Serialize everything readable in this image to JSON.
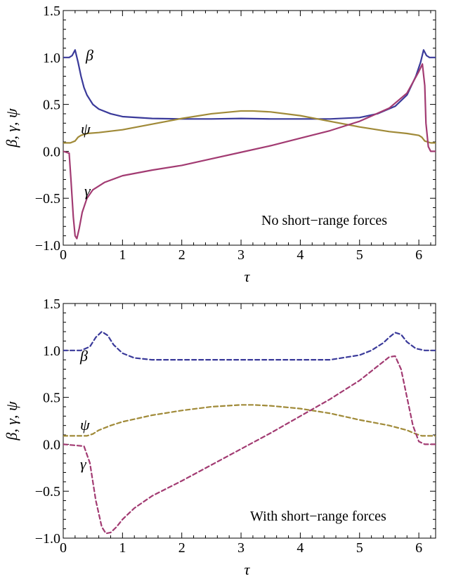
{
  "chart_data": [
    {
      "type": "line",
      "xlabel": "τ",
      "ylabel": "β, γ, ψ",
      "xlim": [
        0,
        6.2832
      ],
      "ylim": [
        -1.0,
        1.5
      ],
      "xticks": [
        "0",
        "1",
        "2",
        "3",
        "4",
        "5",
        "6"
      ],
      "yticks": [
        "−1.0",
        "−0.5",
        "0.0",
        "0.5",
        "1.0",
        "1.5"
      ],
      "annotation": "No short−range forces",
      "line_style": "solid",
      "series": [
        {
          "name": "β",
          "color": "#3a3a9a",
          "x": [
            0,
            0.1,
            0.15,
            0.2,
            0.25,
            0.3,
            0.35,
            0.4,
            0.5,
            0.6,
            0.8,
            1.0,
            1.5,
            2.0,
            2.5,
            3.0,
            3.5,
            4.0,
            4.5,
            5.0,
            5.3,
            5.6,
            5.8,
            5.95,
            6.03,
            6.08,
            6.13,
            6.18,
            6.2832
          ],
          "y": [
            1.0,
            1.0,
            1.02,
            1.08,
            0.95,
            0.8,
            0.68,
            0.6,
            0.5,
            0.45,
            0.4,
            0.37,
            0.35,
            0.345,
            0.345,
            0.35,
            0.345,
            0.345,
            0.345,
            0.36,
            0.4,
            0.48,
            0.6,
            0.8,
            0.95,
            1.08,
            1.02,
            1.0,
            1.0
          ]
        },
        {
          "name": "ψ",
          "color": "#a08a38",
          "x": [
            0,
            0.12,
            0.2,
            0.25,
            0.3,
            0.4,
            0.6,
            1.0,
            1.5,
            2.0,
            2.5,
            3.0,
            3.2,
            3.5,
            4.0,
            4.5,
            5.0,
            5.5,
            5.8,
            6.0,
            6.05,
            6.1,
            6.2,
            6.2832
          ],
          "y": [
            0.09,
            0.09,
            0.11,
            0.15,
            0.17,
            0.19,
            0.2,
            0.23,
            0.29,
            0.35,
            0.4,
            0.43,
            0.43,
            0.42,
            0.38,
            0.32,
            0.26,
            0.21,
            0.19,
            0.17,
            0.15,
            0.11,
            0.09,
            0.09
          ]
        },
        {
          "name": "γ",
          "color": "#a23b72",
          "x": [
            0,
            0.1,
            0.13,
            0.17,
            0.2,
            0.23,
            0.27,
            0.32,
            0.4,
            0.5,
            0.7,
            1.0,
            1.5,
            2.0,
            2.5,
            3.0,
            3.5,
            4.0,
            4.5,
            5.0,
            5.5,
            5.8,
            6.0,
            6.06,
            6.1,
            6.12,
            6.16,
            6.2,
            6.2832
          ],
          "y": [
            0.0,
            -0.02,
            -0.3,
            -0.7,
            -0.9,
            -0.93,
            -0.82,
            -0.65,
            -0.5,
            -0.41,
            -0.33,
            -0.26,
            -0.2,
            -0.15,
            -0.08,
            -0.01,
            0.06,
            0.14,
            0.22,
            0.32,
            0.46,
            0.62,
            0.85,
            0.93,
            0.7,
            0.3,
            0.05,
            0.0,
            0.0
          ]
        }
      ]
    },
    {
      "type": "line",
      "xlabel": "τ",
      "ylabel": "β, γ, ψ",
      "xlim": [
        0,
        6.2832
      ],
      "ylim": [
        -1.0,
        1.5
      ],
      "xticks": [
        "0",
        "1",
        "2",
        "3",
        "4",
        "5",
        "6"
      ],
      "yticks": [
        "−1.0",
        "−0.5",
        "0.0",
        "0.5",
        "1.0",
        "1.5"
      ],
      "annotation": "With short−range forces",
      "line_style": "dashed",
      "series": [
        {
          "name": "β",
          "color": "#3a3a9a",
          "x": [
            0,
            0.3,
            0.45,
            0.55,
            0.65,
            0.75,
            0.85,
            1.0,
            1.2,
            1.5,
            2.0,
            3.0,
            4.0,
            4.5,
            5.0,
            5.2,
            5.4,
            5.5,
            5.6,
            5.7,
            5.8,
            5.95,
            6.1,
            6.2832
          ],
          "y": [
            1.0,
            1.0,
            1.04,
            1.14,
            1.2,
            1.16,
            1.06,
            0.97,
            0.92,
            0.9,
            0.9,
            0.9,
            0.9,
            0.9,
            0.95,
            1.0,
            1.08,
            1.14,
            1.19,
            1.17,
            1.09,
            1.02,
            1.0,
            1.0
          ]
        },
        {
          "name": "ψ",
          "color": "#a08a38",
          "x": [
            0,
            0.4,
            0.5,
            0.6,
            0.8,
            1.0,
            1.5,
            2.0,
            2.5,
            3.0,
            3.2,
            3.5,
            4.0,
            4.5,
            5.0,
            5.5,
            5.8,
            5.95,
            6.05,
            6.2832
          ],
          "y": [
            0.09,
            0.09,
            0.11,
            0.15,
            0.2,
            0.24,
            0.31,
            0.36,
            0.4,
            0.42,
            0.42,
            0.41,
            0.38,
            0.33,
            0.26,
            0.2,
            0.15,
            0.11,
            0.09,
            0.09
          ]
        },
        {
          "name": "γ",
          "color": "#a23b72",
          "x": [
            0,
            0.35,
            0.45,
            0.55,
            0.65,
            0.72,
            0.8,
            0.9,
            1.0,
            1.2,
            1.5,
            2.0,
            2.5,
            3.0,
            3.5,
            4.0,
            4.5,
            5.0,
            5.3,
            5.5,
            5.6,
            5.7,
            5.8,
            5.9,
            6.0,
            6.1,
            6.2832
          ],
          "y": [
            0.0,
            -0.02,
            -0.2,
            -0.6,
            -0.88,
            -0.95,
            -0.94,
            -0.88,
            -0.8,
            -0.68,
            -0.55,
            -0.39,
            -0.22,
            -0.05,
            0.12,
            0.3,
            0.48,
            0.68,
            0.83,
            0.93,
            0.94,
            0.8,
            0.5,
            0.2,
            0.03,
            0.0,
            0.0
          ]
        }
      ]
    }
  ]
}
